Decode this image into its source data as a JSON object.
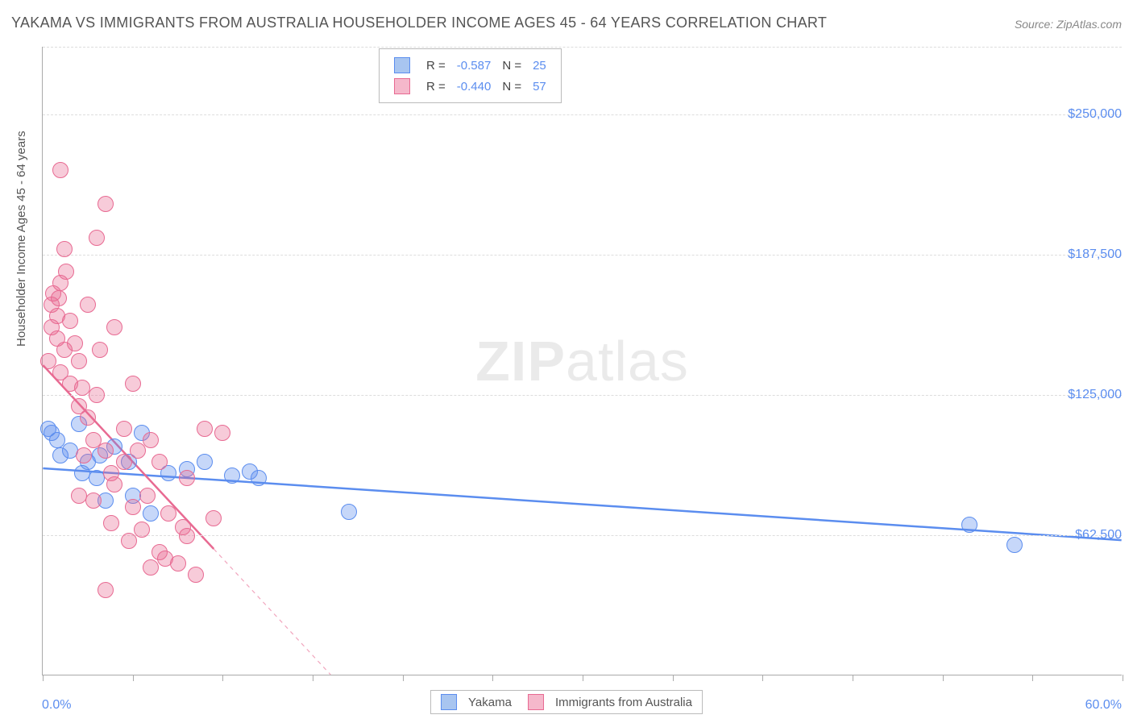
{
  "title": "YAKAMA VS IMMIGRANTS FROM AUSTRALIA HOUSEHOLDER INCOME AGES 45 - 64 YEARS CORRELATION CHART",
  "source": "Source: ZipAtlas.com",
  "ylabel": "Householder Income Ages 45 - 64 years",
  "watermark_bold": "ZIP",
  "watermark_light": "atlas",
  "chart": {
    "type": "scatter",
    "background_color": "#ffffff",
    "grid_color": "#dddddd",
    "axis_color": "#aaaaaa",
    "label_color": "#5b8def",
    "text_color": "#555555",
    "title_fontsize": 18,
    "label_fontsize": 15,
    "tick_fontsize": 16,
    "point_radius": 10,
    "point_opacity": 0.45,
    "line_width": 2.5,
    "xlim": [
      0,
      60
    ],
    "ylim": [
      0,
      280000
    ],
    "x_tick_positions": [
      0,
      5,
      10,
      15,
      20,
      25,
      30,
      35,
      40,
      45,
      50,
      55,
      60
    ],
    "y_gridlines": [
      62500,
      125000,
      187500,
      250000,
      280000
    ],
    "y_tick_labels": [
      {
        "value": 62500,
        "text": "$62,500"
      },
      {
        "value": 125000,
        "text": "$125,000"
      },
      {
        "value": 187500,
        "text": "$187,500"
      },
      {
        "value": 250000,
        "text": "$250,000"
      }
    ],
    "x_axis_labels": [
      {
        "value": 0,
        "text": "0.0%",
        "align": "left"
      },
      {
        "value": 60,
        "text": "60.0%",
        "align": "right"
      }
    ]
  },
  "stats_legend": {
    "rows": [
      {
        "swatch_fill": "#a8c5f0",
        "swatch_border": "#5b8def",
        "r_label": "R =",
        "r_value": "-0.587",
        "n_label": "N =",
        "n_value": "25"
      },
      {
        "swatch_fill": "#f5b8cb",
        "swatch_border": "#e86a92",
        "r_label": "R =",
        "r_value": "-0.440",
        "n_label": "N =",
        "n_value": "57"
      }
    ]
  },
  "bottom_legend": {
    "items": [
      {
        "swatch_fill": "#a8c5f0",
        "swatch_border": "#5b8def",
        "label": "Yakama"
      },
      {
        "swatch_fill": "#f5b8cb",
        "swatch_border": "#e86a92",
        "label": "Immigrants from Australia"
      }
    ]
  },
  "series": [
    {
      "name": "Yakama",
      "color_fill": "rgba(91,141,239,0.35)",
      "color_stroke": "#5b8def",
      "trend": {
        "x1": 0,
        "y1": 92000,
        "x2": 60,
        "y2": 60000,
        "dash_after_x": null
      },
      "points": [
        [
          0.3,
          110000
        ],
        [
          0.5,
          108000
        ],
        [
          0.8,
          105000
        ],
        [
          1.0,
          98000
        ],
        [
          1.5,
          100000
        ],
        [
          2.0,
          112000
        ],
        [
          2.2,
          90000
        ],
        [
          2.5,
          95000
        ],
        [
          3.0,
          88000
        ],
        [
          3.2,
          98000
        ],
        [
          3.5,
          78000
        ],
        [
          4.0,
          102000
        ],
        [
          4.8,
          95000
        ],
        [
          5.0,
          80000
        ],
        [
          5.5,
          108000
        ],
        [
          6.0,
          72000
        ],
        [
          7.0,
          90000
        ],
        [
          8.0,
          92000
        ],
        [
          9.0,
          95000
        ],
        [
          10.5,
          89000
        ],
        [
          11.5,
          91000
        ],
        [
          12.0,
          88000
        ],
        [
          17.0,
          73000
        ],
        [
          51.5,
          67000
        ],
        [
          54.0,
          58000
        ]
      ]
    },
    {
      "name": "Immigrants from Australia",
      "color_fill": "rgba(232,106,146,0.35)",
      "color_stroke": "#e86a92",
      "trend": {
        "x1": 0,
        "y1": 138000,
        "x2": 16,
        "y2": 0,
        "dash_after_x": 9.5
      },
      "points": [
        [
          0.3,
          140000
        ],
        [
          0.5,
          155000
        ],
        [
          0.5,
          165000
        ],
        [
          0.6,
          170000
        ],
        [
          0.8,
          150000
        ],
        [
          0.8,
          160000
        ],
        [
          1.0,
          175000
        ],
        [
          1.0,
          135000
        ],
        [
          1.2,
          145000
        ],
        [
          1.2,
          190000
        ],
        [
          1.5,
          130000
        ],
        [
          1.5,
          158000
        ],
        [
          1.8,
          148000
        ],
        [
          2.0,
          120000
        ],
        [
          2.0,
          140000
        ],
        [
          2.2,
          128000
        ],
        [
          2.5,
          165000
        ],
        [
          2.5,
          115000
        ],
        [
          2.8,
          105000
        ],
        [
          3.0,
          195000
        ],
        [
          3.0,
          125000
        ],
        [
          3.2,
          145000
        ],
        [
          3.5,
          100000
        ],
        [
          3.5,
          210000
        ],
        [
          3.8,
          90000
        ],
        [
          4.0,
          155000
        ],
        [
          4.0,
          85000
        ],
        [
          4.5,
          95000
        ],
        [
          4.5,
          110000
        ],
        [
          5.0,
          75000
        ],
        [
          5.0,
          130000
        ],
        [
          5.5,
          65000
        ],
        [
          5.8,
          80000
        ],
        [
          6.0,
          48000
        ],
        [
          6.0,
          105000
        ],
        [
          6.5,
          55000
        ],
        [
          6.5,
          95000
        ],
        [
          7.0,
          72000
        ],
        [
          7.5,
          50000
        ],
        [
          8.0,
          62000
        ],
        [
          8.0,
          88000
        ],
        [
          8.5,
          45000
        ],
        [
          9.0,
          110000
        ],
        [
          9.5,
          70000
        ],
        [
          10.0,
          108000
        ],
        [
          1.0,
          225000
        ],
        [
          2.0,
          80000
        ],
        [
          2.8,
          78000
        ],
        [
          3.5,
          38000
        ],
        [
          4.8,
          60000
        ],
        [
          1.3,
          180000
        ],
        [
          0.9,
          168000
        ],
        [
          2.3,
          98000
        ],
        [
          3.8,
          68000
        ],
        [
          5.3,
          100000
        ],
        [
          6.8,
          52000
        ],
        [
          7.8,
          66000
        ]
      ]
    }
  ]
}
